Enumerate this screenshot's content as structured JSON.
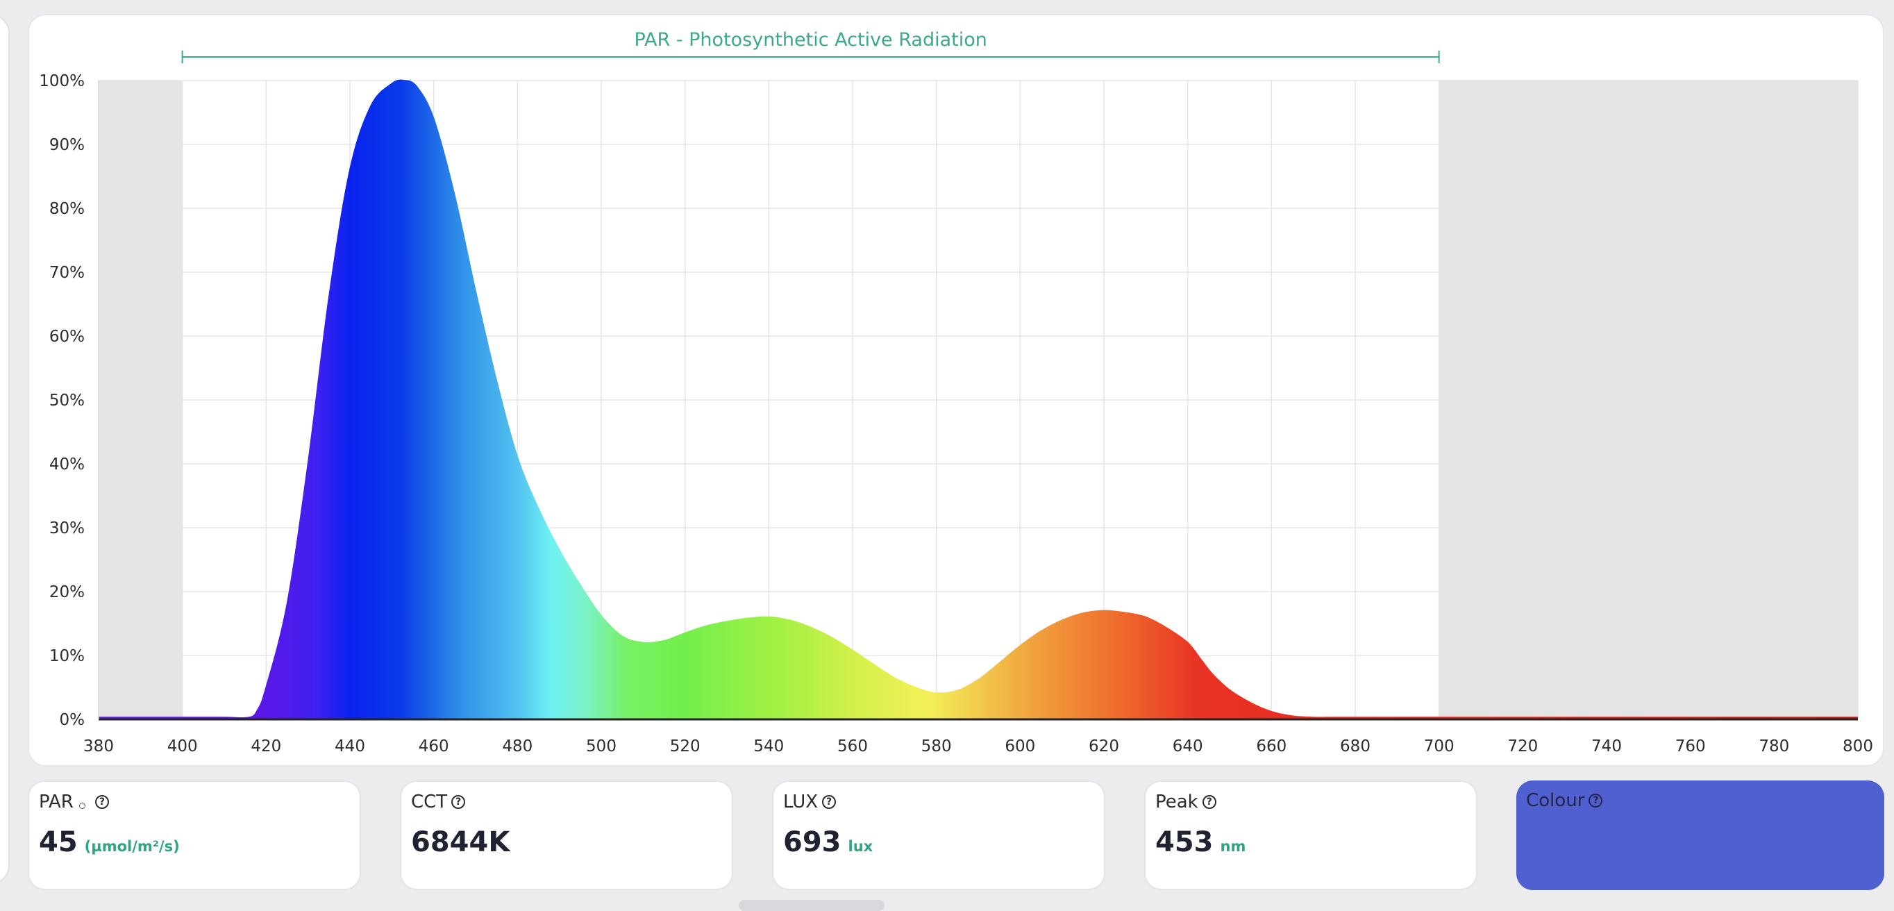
{
  "chart_data": {
    "type": "area",
    "title": "PAR - Photosynthetic Active Radiation",
    "par_range": [
      400,
      700
    ],
    "xlim": [
      380,
      800
    ],
    "ylim": [
      0,
      100
    ],
    "x_ticks": [
      "380",
      "400",
      "420",
      "440",
      "460",
      "480",
      "500",
      "520",
      "540",
      "560",
      "580",
      "600",
      "620",
      "640",
      "660",
      "680",
      "700",
      "720",
      "740",
      "760",
      "780",
      "800"
    ],
    "y_ticks": [
      "0%",
      "10%",
      "20%",
      "30%",
      "40%",
      "50%",
      "60%",
      "70%",
      "80%",
      "90%",
      "100%"
    ],
    "x": [
      380,
      400,
      410,
      416,
      418,
      420,
      425,
      430,
      435,
      440,
      445,
      450,
      453,
      456,
      460,
      465,
      470,
      475,
      480,
      485,
      490,
      495,
      500,
      505,
      510,
      515,
      520,
      525,
      530,
      535,
      540,
      545,
      550,
      555,
      560,
      565,
      570,
      575,
      580,
      585,
      590,
      595,
      600,
      605,
      610,
      615,
      620,
      625,
      630,
      635,
      640,
      643,
      646,
      650,
      655,
      660,
      665,
      670,
      675,
      680,
      685,
      690,
      695,
      700,
      720,
      740,
      760,
      780,
      800
    ],
    "values": [
      0.3,
      0.3,
      0.3,
      0.3,
      1.5,
      5,
      18,
      40,
      66,
      86,
      96,
      99.5,
      100,
      99,
      94,
      82,
      67,
      53,
      41,
      33,
      26.5,
      21,
      16.2,
      13,
      12,
      12.3,
      13.5,
      14.6,
      15.3,
      15.8,
      16,
      15.5,
      14.4,
      12.8,
      10.8,
      8.6,
      6.5,
      5,
      4.1,
      4.5,
      6.2,
      8.8,
      11.5,
      13.8,
      15.5,
      16.6,
      17,
      16.7,
      16,
      14.3,
      12,
      9.5,
      7,
      4.6,
      2.6,
      1.2,
      0.5,
      0.3,
      0.3,
      0.3,
      0.3,
      0.3,
      0.3,
      0.3,
      0.3,
      0.3,
      0.3,
      0.3,
      0.3
    ]
  },
  "stats": {
    "par": {
      "label": "PAR",
      "value": "45",
      "unit": "(µmol/m²/s)"
    },
    "cct": {
      "label": "CCT",
      "value": "6844K"
    },
    "lux": {
      "label": "LUX",
      "value": "693",
      "unit": "lux"
    },
    "peak": {
      "label": "Peak",
      "value": "453",
      "unit": "nm"
    },
    "colour": {
      "label": "Colour",
      "swatch": "#5060d0"
    }
  },
  "colors": {
    "accent": "#3aaa8b",
    "grid": "#e5e5e5",
    "excluded_band": "#e4e4e4"
  }
}
